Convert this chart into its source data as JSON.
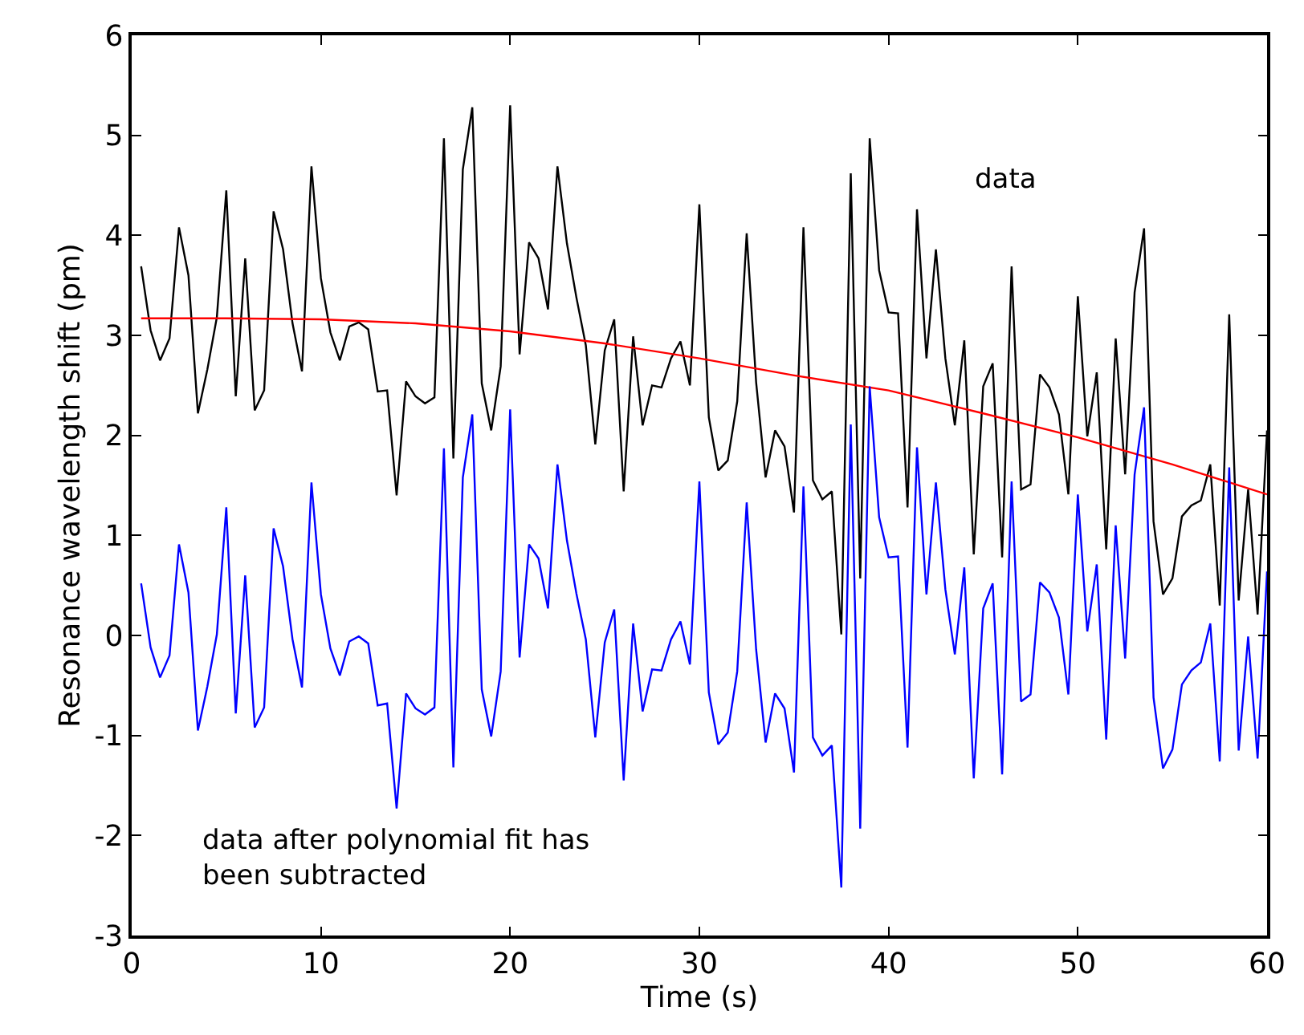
{
  "chart_data": {
    "type": "line",
    "xlabel": "Time (s)",
    "ylabel": "Resonance wavelength shift (pm)",
    "x": [
      0.5,
      1,
      1.5,
      2,
      2.5,
      3,
      3.5,
      4,
      4.5,
      5,
      5.5,
      6,
      6.5,
      7,
      7.5,
      8,
      8.5,
      9,
      9.5,
      10,
      10.5,
      11,
      11.5,
      12,
      12.5,
      13,
      13.5,
      14,
      14.5,
      15,
      15.5,
      16,
      16.5,
      17,
      17.5,
      18,
      18.5,
      19,
      19.5,
      20,
      20.5,
      21,
      21.5,
      22,
      22.5,
      23,
      23.5,
      24,
      24.5,
      25,
      25.5,
      26,
      26.5,
      27,
      27.5,
      28,
      28.5,
      29,
      29.5,
      30,
      30.5,
      31,
      31.5,
      32,
      32.5,
      33,
      33.5,
      34,
      34.5,
      35,
      35.5,
      36,
      36.5,
      37,
      37.5,
      38,
      38.5,
      39,
      39.5,
      40,
      40.5,
      41,
      41.5,
      42,
      42.5,
      43,
      43.5,
      44,
      44.5,
      45,
      45.5,
      46,
      46.5,
      47,
      47.5,
      48,
      48.5,
      49,
      49.5,
      50,
      50.5,
      51,
      51.5,
      52,
      52.5,
      53,
      53.5,
      54,
      54.5,
      55,
      55.5,
      56,
      56.5,
      57,
      57.5,
      58,
      58.5,
      59,
      59.5,
      60
    ],
    "series": [
      {
        "name": "data",
        "color": "#000000",
        "values": [
          3.69,
          3.05,
          2.75,
          2.97,
          4.08,
          3.6,
          2.22,
          2.66,
          3.18,
          4.45,
          2.39,
          3.77,
          2.25,
          2.45,
          4.24,
          3.86,
          3.12,
          2.64,
          4.69,
          3.57,
          3.03,
          2.75,
          3.09,
          3.13,
          3.06,
          2.44,
          2.45,
          1.4,
          2.54,
          2.39,
          2.32,
          2.38,
          4.97,
          1.77,
          4.66,
          5.28,
          2.52,
          2.05,
          2.69,
          5.3,
          2.81,
          3.93,
          3.77,
          3.26,
          4.69,
          3.92,
          3.38,
          2.9,
          1.91,
          2.85,
          3.16,
          1.44,
          2.99,
          2.1,
          2.5,
          2.48,
          2.77,
          2.94,
          2.5,
          4.31,
          2.18,
          1.65,
          1.75,
          2.34,
          4.02,
          2.53,
          1.58,
          2.05,
          1.89,
          1.23,
          4.08,
          1.55,
          1.36,
          1.44,
          0.01,
          4.62,
          0.57,
          4.97,
          3.65,
          3.23,
          3.22,
          1.28,
          4.26,
          2.77,
          3.86,
          2.77,
          2.1,
          2.95,
          0.81,
          2.49,
          2.72,
          0.78,
          3.69,
          1.46,
          1.51,
          2.61,
          2.48,
          2.21,
          1.41,
          3.39,
          1.99,
          2.63,
          0.86,
          2.97,
          1.61,
          3.43,
          4.07,
          1.14,
          0.41,
          0.57,
          1.19,
          1.3,
          1.35,
          1.71,
          0.3,
          3.21,
          0.35,
          1.46,
          0.21,
          2.05
        ]
      },
      {
        "color": "#ff0000",
        "x": [
          0.5,
          5,
          10,
          15,
          20,
          25,
          30,
          35,
          40,
          45,
          50,
          55,
          60
        ],
        "values": [
          3.17,
          3.17,
          3.16,
          3.12,
          3.04,
          2.92,
          2.77,
          2.6,
          2.45,
          2.22,
          1.98,
          1.71,
          1.41
        ]
      },
      {
        "name": "data after polynomial fit has been subtracted",
        "color": "#0000ff",
        "values": [
          0.52,
          -0.12,
          -0.42,
          -0.2,
          0.91,
          0.43,
          -0.95,
          -0.51,
          0.01,
          1.28,
          -0.78,
          0.6,
          -0.92,
          -0.72,
          1.07,
          0.69,
          -0.04,
          -0.52,
          1.53,
          0.41,
          -0.13,
          -0.4,
          -0.06,
          -0.01,
          -0.08,
          -0.7,
          -0.68,
          -1.73,
          -0.58,
          -0.73,
          -0.79,
          -0.72,
          1.87,
          -1.32,
          1.58,
          2.21,
          -0.54,
          -1.01,
          -0.36,
          2.26,
          -0.22,
          0.91,
          0.77,
          0.27,
          1.71,
          0.95,
          0.42,
          -0.04,
          -1.02,
          -0.07,
          0.26,
          -1.45,
          0.12,
          -0.76,
          -0.34,
          -0.35,
          -0.04,
          0.14,
          -0.29,
          1.54,
          -0.57,
          -1.09,
          -0.97,
          -0.36,
          1.33,
          -0.14,
          -1.07,
          -0.58,
          -0.73,
          -1.37,
          1.49,
          -1.02,
          -1.2,
          -1.1,
          -2.52,
          2.11,
          -1.93,
          2.49,
          1.18,
          0.78,
          0.79,
          -1.12,
          1.88,
          0.41,
          1.53,
          0.46,
          -0.19,
          0.68,
          -1.43,
          0.27,
          0.52,
          -1.39,
          1.54,
          -0.66,
          -0.59,
          0.53,
          0.43,
          0.18,
          -0.59,
          1.41,
          0.04,
          0.71,
          -1.04,
          1.1,
          -0.23,
          1.61,
          2.28,
          -0.62,
          -1.33,
          -1.14,
          -0.49,
          -0.35,
          -0.27,
          0.12,
          -1.26,
          1.68,
          -1.15,
          -0.01,
          -1.23,
          0.64
        ]
      }
    ],
    "xlim": [
      0,
      60
    ],
    "xticks": [
      0,
      10,
      20,
      30,
      40,
      50,
      60
    ],
    "ylim": [
      -3,
      6
    ],
    "yticks": [
      -3,
      -2,
      -1,
      0,
      1,
      2,
      3,
      4,
      5,
      6
    ],
    "grid": false,
    "legend": false,
    "marker": "none",
    "line_style": "solid"
  }
}
